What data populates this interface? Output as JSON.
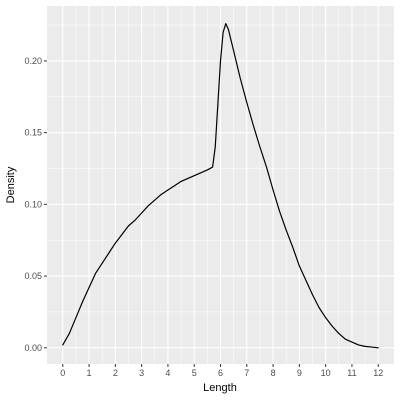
{
  "chart_data": {
    "type": "line",
    "title": "",
    "xlabel": "Length",
    "ylabel": "Density",
    "xlim": [
      -0.6,
      12.6
    ],
    "ylim": [
      -0.0113,
      0.2383
    ],
    "x_ticks": [
      0,
      1,
      2,
      3,
      4,
      5,
      6,
      7,
      8,
      9,
      10,
      11,
      12
    ],
    "x_tick_labels": [
      "0",
      "1",
      "2",
      "3",
      "4",
      "5",
      "6",
      "7",
      "8",
      "9",
      "10",
      "11",
      "12"
    ],
    "y_ticks": [
      0.0,
      0.05,
      0.1,
      0.15,
      0.2
    ],
    "y_tick_labels": [
      "0.00",
      "0.05",
      "0.10",
      "0.15",
      "0.20"
    ],
    "y_minor_ticks": [
      0.025,
      0.075,
      0.125,
      0.175,
      0.225
    ],
    "grid": true,
    "legend": "none",
    "colors": {
      "panel": "#ebebeb",
      "grid": "#ffffff",
      "line": "#000000"
    },
    "series": [
      {
        "x": [
          0,
          0.25,
          0.5,
          0.75,
          1.0,
          1.25,
          1.5,
          1.75,
          2.0,
          2.25,
          2.5,
          2.75,
          3.0,
          3.25,
          3.5,
          3.75,
          4.0,
          4.25,
          4.5,
          4.75,
          5.0,
          5.25,
          5.5,
          5.7,
          5.8,
          5.9,
          6.0,
          6.1,
          6.2,
          6.3,
          6.5,
          6.75,
          7.0,
          7.25,
          7.5,
          7.75,
          8.0,
          8.25,
          8.5,
          8.75,
          9.0,
          9.25,
          9.5,
          9.75,
          10.0,
          10.25,
          10.5,
          10.75,
          11.0,
          11.25,
          11.5,
          11.75,
          12.0
        ],
        "y": [
          0.002,
          0.01,
          0.021,
          0.032,
          0.042,
          0.052,
          0.059,
          0.066,
          0.073,
          0.079,
          0.085,
          0.089,
          0.094,
          0.099,
          0.103,
          0.107,
          0.11,
          0.113,
          0.116,
          0.118,
          0.12,
          0.122,
          0.124,
          0.126,
          0.14,
          0.17,
          0.2,
          0.22,
          0.226,
          0.222,
          0.207,
          0.188,
          0.171,
          0.155,
          0.14,
          0.126,
          0.11,
          0.095,
          0.082,
          0.07,
          0.057,
          0.047,
          0.037,
          0.028,
          0.021,
          0.015,
          0.01,
          0.006,
          0.004,
          0.002,
          0.001,
          0.0005,
          0.0
        ]
      }
    ]
  }
}
